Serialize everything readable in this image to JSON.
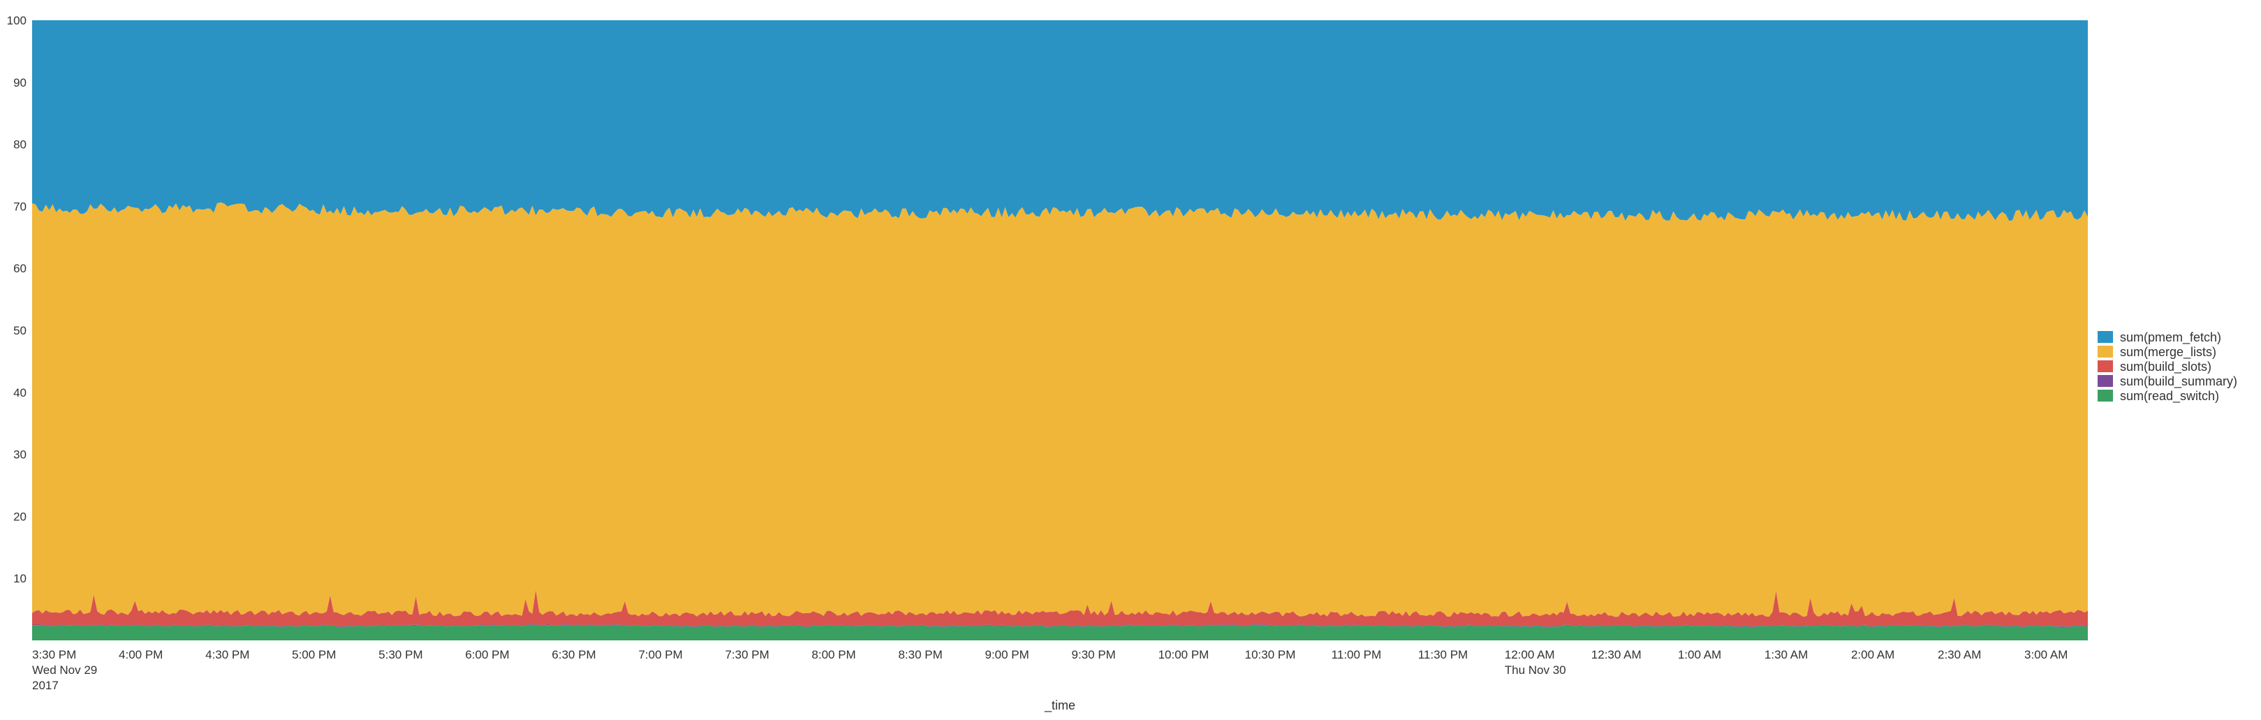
{
  "chart_data": {
    "type": "area",
    "stacked": "percent",
    "title": "",
    "xlabel": "_time",
    "ylabel": "",
    "ylim": [
      0,
      100
    ],
    "y_ticks": [
      10,
      20,
      30,
      40,
      50,
      60,
      70,
      80,
      90,
      100
    ],
    "x_ticks": [
      {
        "time": "2017-11-29 15:30",
        "lines": [
          "3:30 PM",
          "Wed Nov 29",
          "2017"
        ]
      },
      {
        "time": "2017-11-29 16:00",
        "lines": [
          "4:00 PM"
        ]
      },
      {
        "time": "2017-11-29 16:30",
        "lines": [
          "4:30 PM"
        ]
      },
      {
        "time": "2017-11-29 17:00",
        "lines": [
          "5:00 PM"
        ]
      },
      {
        "time": "2017-11-29 17:30",
        "lines": [
          "5:30 PM"
        ]
      },
      {
        "time": "2017-11-29 18:00",
        "lines": [
          "6:00 PM"
        ]
      },
      {
        "time": "2017-11-29 18:30",
        "lines": [
          "6:30 PM"
        ]
      },
      {
        "time": "2017-11-29 19:00",
        "lines": [
          "7:00 PM"
        ]
      },
      {
        "time": "2017-11-29 19:30",
        "lines": [
          "7:30 PM"
        ]
      },
      {
        "time": "2017-11-29 20:00",
        "lines": [
          "8:00 PM"
        ]
      },
      {
        "time": "2017-11-29 20:30",
        "lines": [
          "8:30 PM"
        ]
      },
      {
        "time": "2017-11-29 21:00",
        "lines": [
          "9:00 PM"
        ]
      },
      {
        "time": "2017-11-29 21:30",
        "lines": [
          "9:30 PM"
        ]
      },
      {
        "time": "2017-11-29 22:00",
        "lines": [
          "10:00 PM"
        ]
      },
      {
        "time": "2017-11-29 22:30",
        "lines": [
          "10:30 PM"
        ]
      },
      {
        "time": "2017-11-29 23:00",
        "lines": [
          "11:00 PM"
        ]
      },
      {
        "time": "2017-11-29 23:30",
        "lines": [
          "11:30 PM"
        ]
      },
      {
        "time": "2017-11-30 00:00",
        "lines": [
          "12:00 AM",
          "Thu Nov 30"
        ]
      },
      {
        "time": "2017-11-30 00:30",
        "lines": [
          "12:30 AM"
        ]
      },
      {
        "time": "2017-11-30 01:00",
        "lines": [
          "1:00 AM"
        ]
      },
      {
        "time": "2017-11-30 01:30",
        "lines": [
          "1:30 AM"
        ]
      },
      {
        "time": "2017-11-30 02:00",
        "lines": [
          "2:00 AM"
        ]
      },
      {
        "time": "2017-11-30 02:30",
        "lines": [
          "2:30 AM"
        ]
      },
      {
        "time": "2017-11-30 03:00",
        "lines": [
          "3:00 AM"
        ]
      }
    ],
    "x_range": [
      "2017-11-29 15:30",
      "2017-11-30 03:22"
    ],
    "series": [
      {
        "name": "sum(read_switch)",
        "color": "#3aa061",
        "approx_percent": 2.3
      },
      {
        "name": "sum(build_summary)",
        "color": "#7b4b9a",
        "approx_percent": 0.1
      },
      {
        "name": "sum(build_slots)",
        "color": "#d9534f",
        "approx_percent": 2.2
      },
      {
        "name": "sum(merge_lists)",
        "color": "#f0b63a",
        "approx_percent": 64.7
      },
      {
        "name": "sum(pmem_fetch)",
        "color": "#2a93c4",
        "approx_percent": 30.7
      }
    ],
    "series_boundaries": {
      "x": [
        "15:30",
        "16:30",
        "17:30",
        "18:30",
        "19:30",
        "20:30",
        "21:30",
        "22:30",
        "23:30",
        "00:30",
        "01:30",
        "02:30",
        "03:22"
      ],
      "green_top": [
        2.4,
        2.3,
        2.3,
        2.4,
        2.3,
        2.3,
        2.3,
        2.4,
        2.3,
        2.3,
        2.3,
        2.3,
        2.3
      ],
      "red_top": [
        4.6,
        4.5,
        4.4,
        4.3,
        4.3,
        4.4,
        4.5,
        4.3,
        4.3,
        4.2,
        4.2,
        4.3,
        4.5
      ],
      "yellow_top": [
        69.6,
        69.8,
        69.3,
        69.2,
        69.0,
        68.9,
        69.1,
        69.0,
        68.7,
        68.5,
        68.6,
        68.6,
        68.5
      ]
    },
    "legend_position": "right",
    "grid": false
  }
}
